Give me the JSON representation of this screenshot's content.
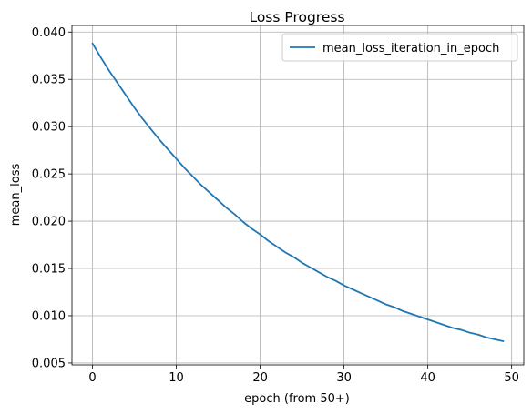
{
  "chart_data": {
    "type": "line",
    "title": "Loss Progress",
    "xlabel": "epoch (from 50+)",
    "ylabel": "mean_loss",
    "xlim": [
      -2.45,
      51.45
    ],
    "ylim": [
      0.0048,
      0.0407
    ],
    "xticks": [
      0,
      10,
      20,
      30,
      40,
      50
    ],
    "yticks": [
      0.005,
      0.01,
      0.015,
      0.02,
      0.025,
      0.03,
      0.035,
      0.04
    ],
    "xtick_labels": [
      "0",
      "10",
      "20",
      "30",
      "40",
      "50"
    ],
    "ytick_labels": [
      "0.005",
      "0.010",
      "0.015",
      "0.020",
      "0.025",
      "0.030",
      "0.035",
      "0.040"
    ],
    "grid": true,
    "legend_position": "top-right",
    "series": [
      {
        "name": "mean_loss_iteration_in_epoch",
        "color": "#1f77b4",
        "x": [
          0,
          1,
          2,
          3,
          4,
          5,
          6,
          7,
          8,
          9,
          10,
          11,
          12,
          13,
          14,
          15,
          16,
          17,
          18,
          19,
          20,
          21,
          22,
          23,
          24,
          25,
          26,
          27,
          28,
          29,
          30,
          31,
          32,
          33,
          34,
          35,
          36,
          37,
          38,
          39,
          40,
          41,
          42,
          43,
          44,
          45,
          46,
          47,
          48,
          49
        ],
        "values": [
          0.0388,
          0.0373,
          0.0359,
          0.0346,
          0.0333,
          0.032,
          0.0308,
          0.0297,
          0.0286,
          0.0276,
          0.0266,
          0.0256,
          0.0247,
          0.0238,
          0.023,
          0.0222,
          0.0214,
          0.0207,
          0.0199,
          0.0192,
          0.0186,
          0.0179,
          0.0173,
          0.0167,
          0.0162,
          0.0156,
          0.0151,
          0.0146,
          0.0141,
          0.0137,
          0.0132,
          0.0128,
          0.0124,
          0.012,
          0.0116,
          0.0112,
          0.0109,
          0.0105,
          0.0102,
          0.0099,
          0.0096,
          0.0093,
          0.009,
          0.0087,
          0.0085,
          0.0082,
          0.008,
          0.0077,
          0.0075,
          0.0073
        ]
      }
    ]
  }
}
